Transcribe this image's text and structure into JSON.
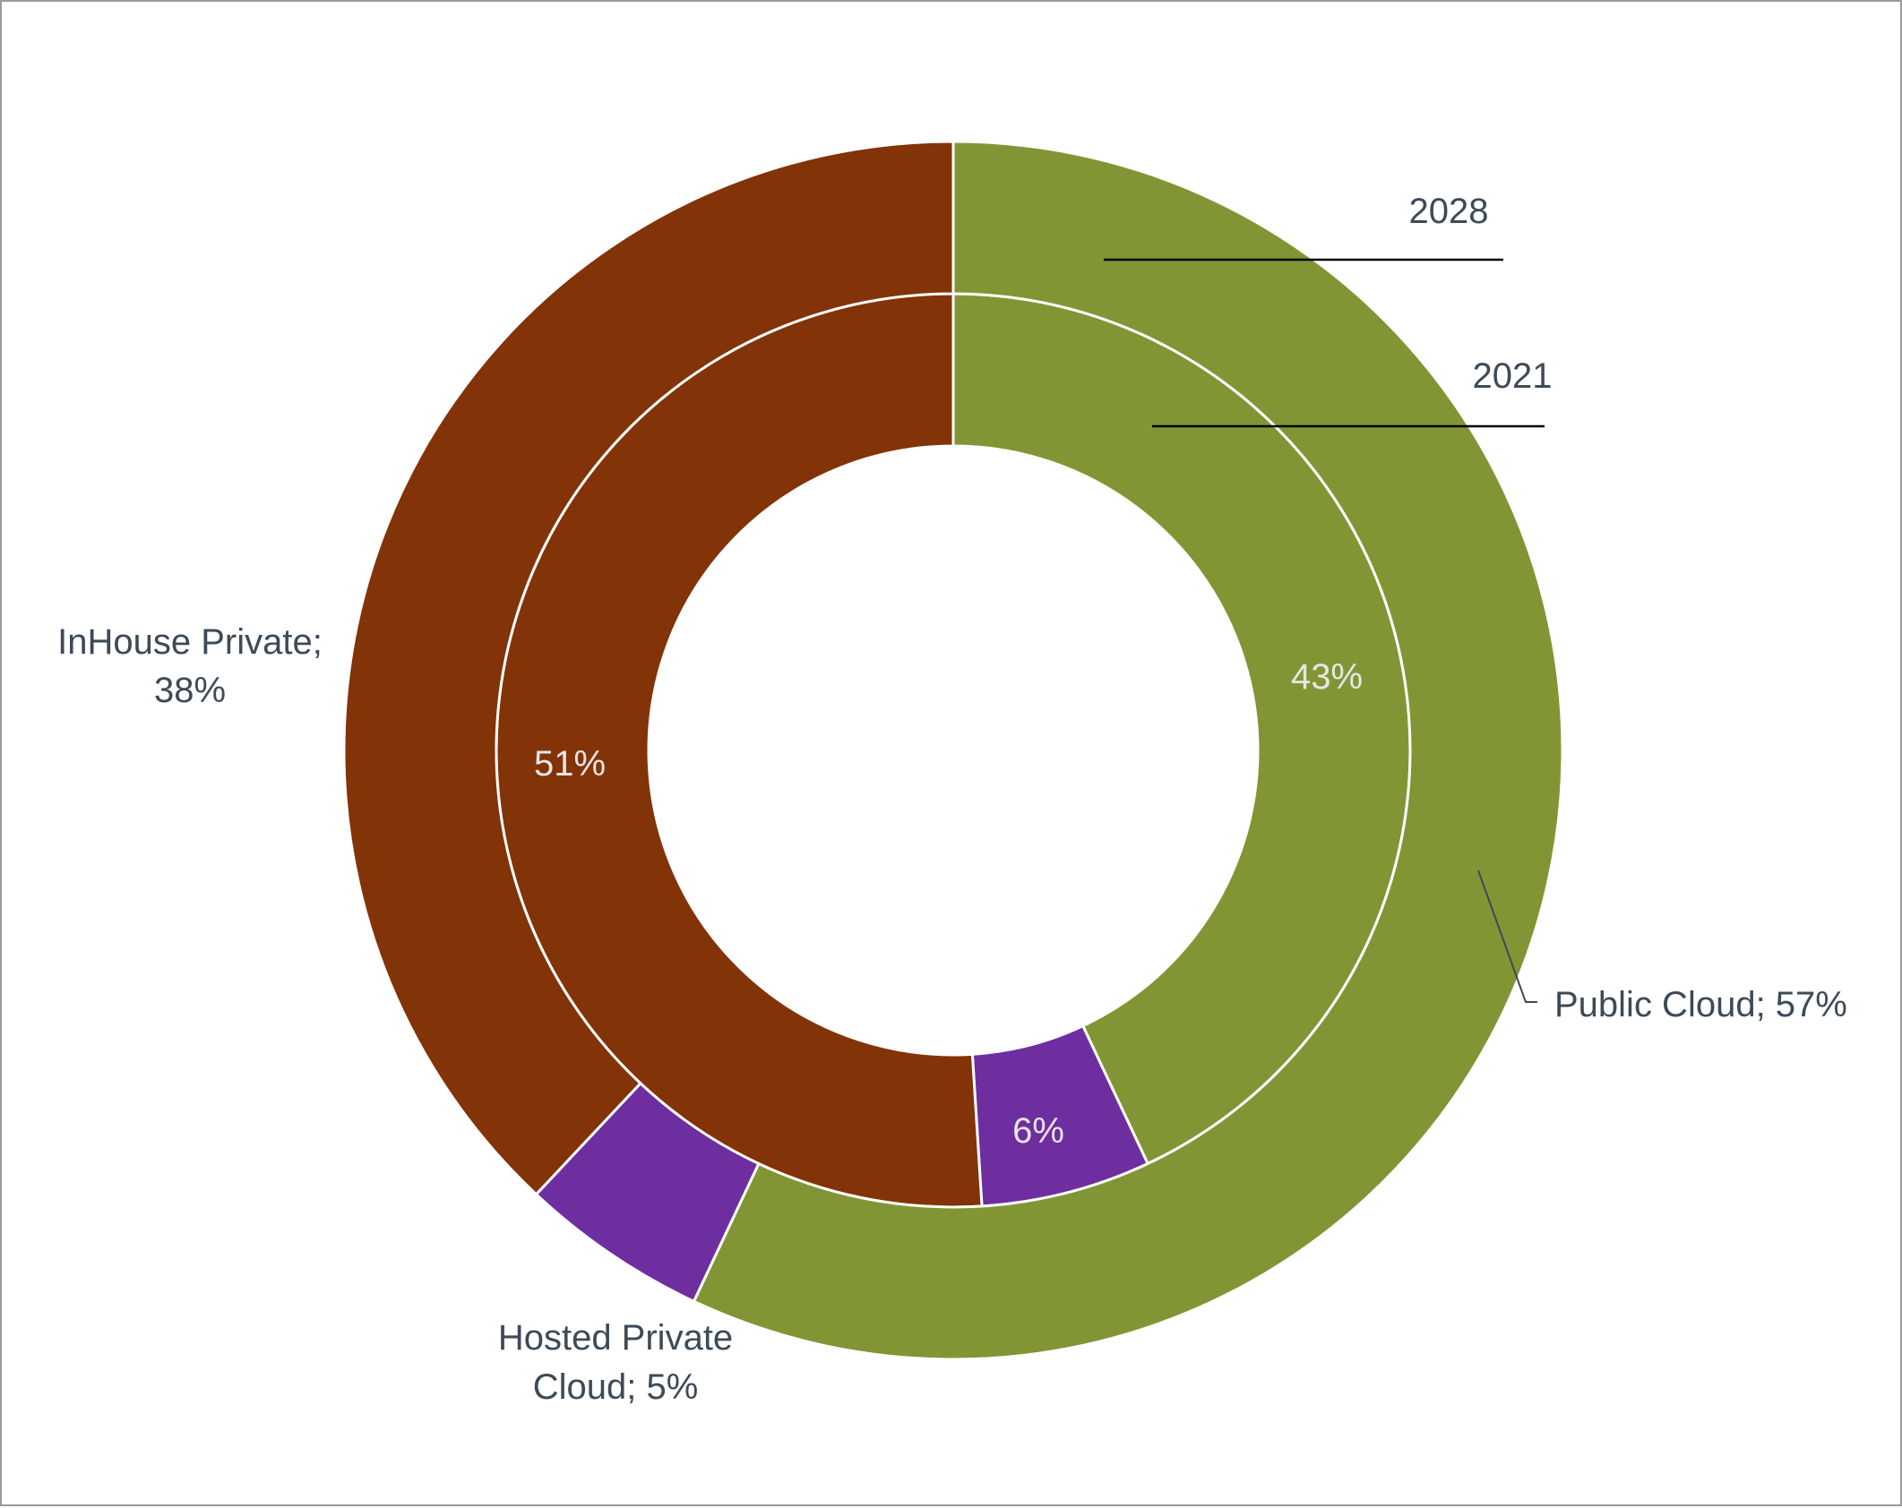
{
  "chart_data": {
    "type": "donut",
    "rings": [
      {
        "name": "2021",
        "slices": [
          {
            "label": "Public Cloud",
            "value": 43,
            "display": "43%"
          },
          {
            "label": "Hosted Private Cloud",
            "value": 6,
            "display": "6%"
          },
          {
            "label": "InHouse Private",
            "value": 51,
            "display": "51%"
          }
        ]
      },
      {
        "name": "2028",
        "slices": [
          {
            "label": "Public Cloud",
            "value": 57
          },
          {
            "label": "Hosted Private Cloud",
            "value": 5
          },
          {
            "label": "InHouse Private",
            "value": 38
          }
        ]
      }
    ],
    "colors": {
      "Public Cloud": "#829535",
      "Hosted Private Cloud": "#6f2e9f",
      "InHouse Private": "#823307"
    },
    "outer_labels": {
      "public": "Public Cloud; 57%",
      "hosted_line1": "Hosted Private",
      "hosted_line2": "Cloud; 5%",
      "inhouse_line1": "InHouse Private;",
      "inhouse_line2": "38%"
    },
    "ring_labels": {
      "outer": "2028",
      "inner": "2021"
    }
  }
}
